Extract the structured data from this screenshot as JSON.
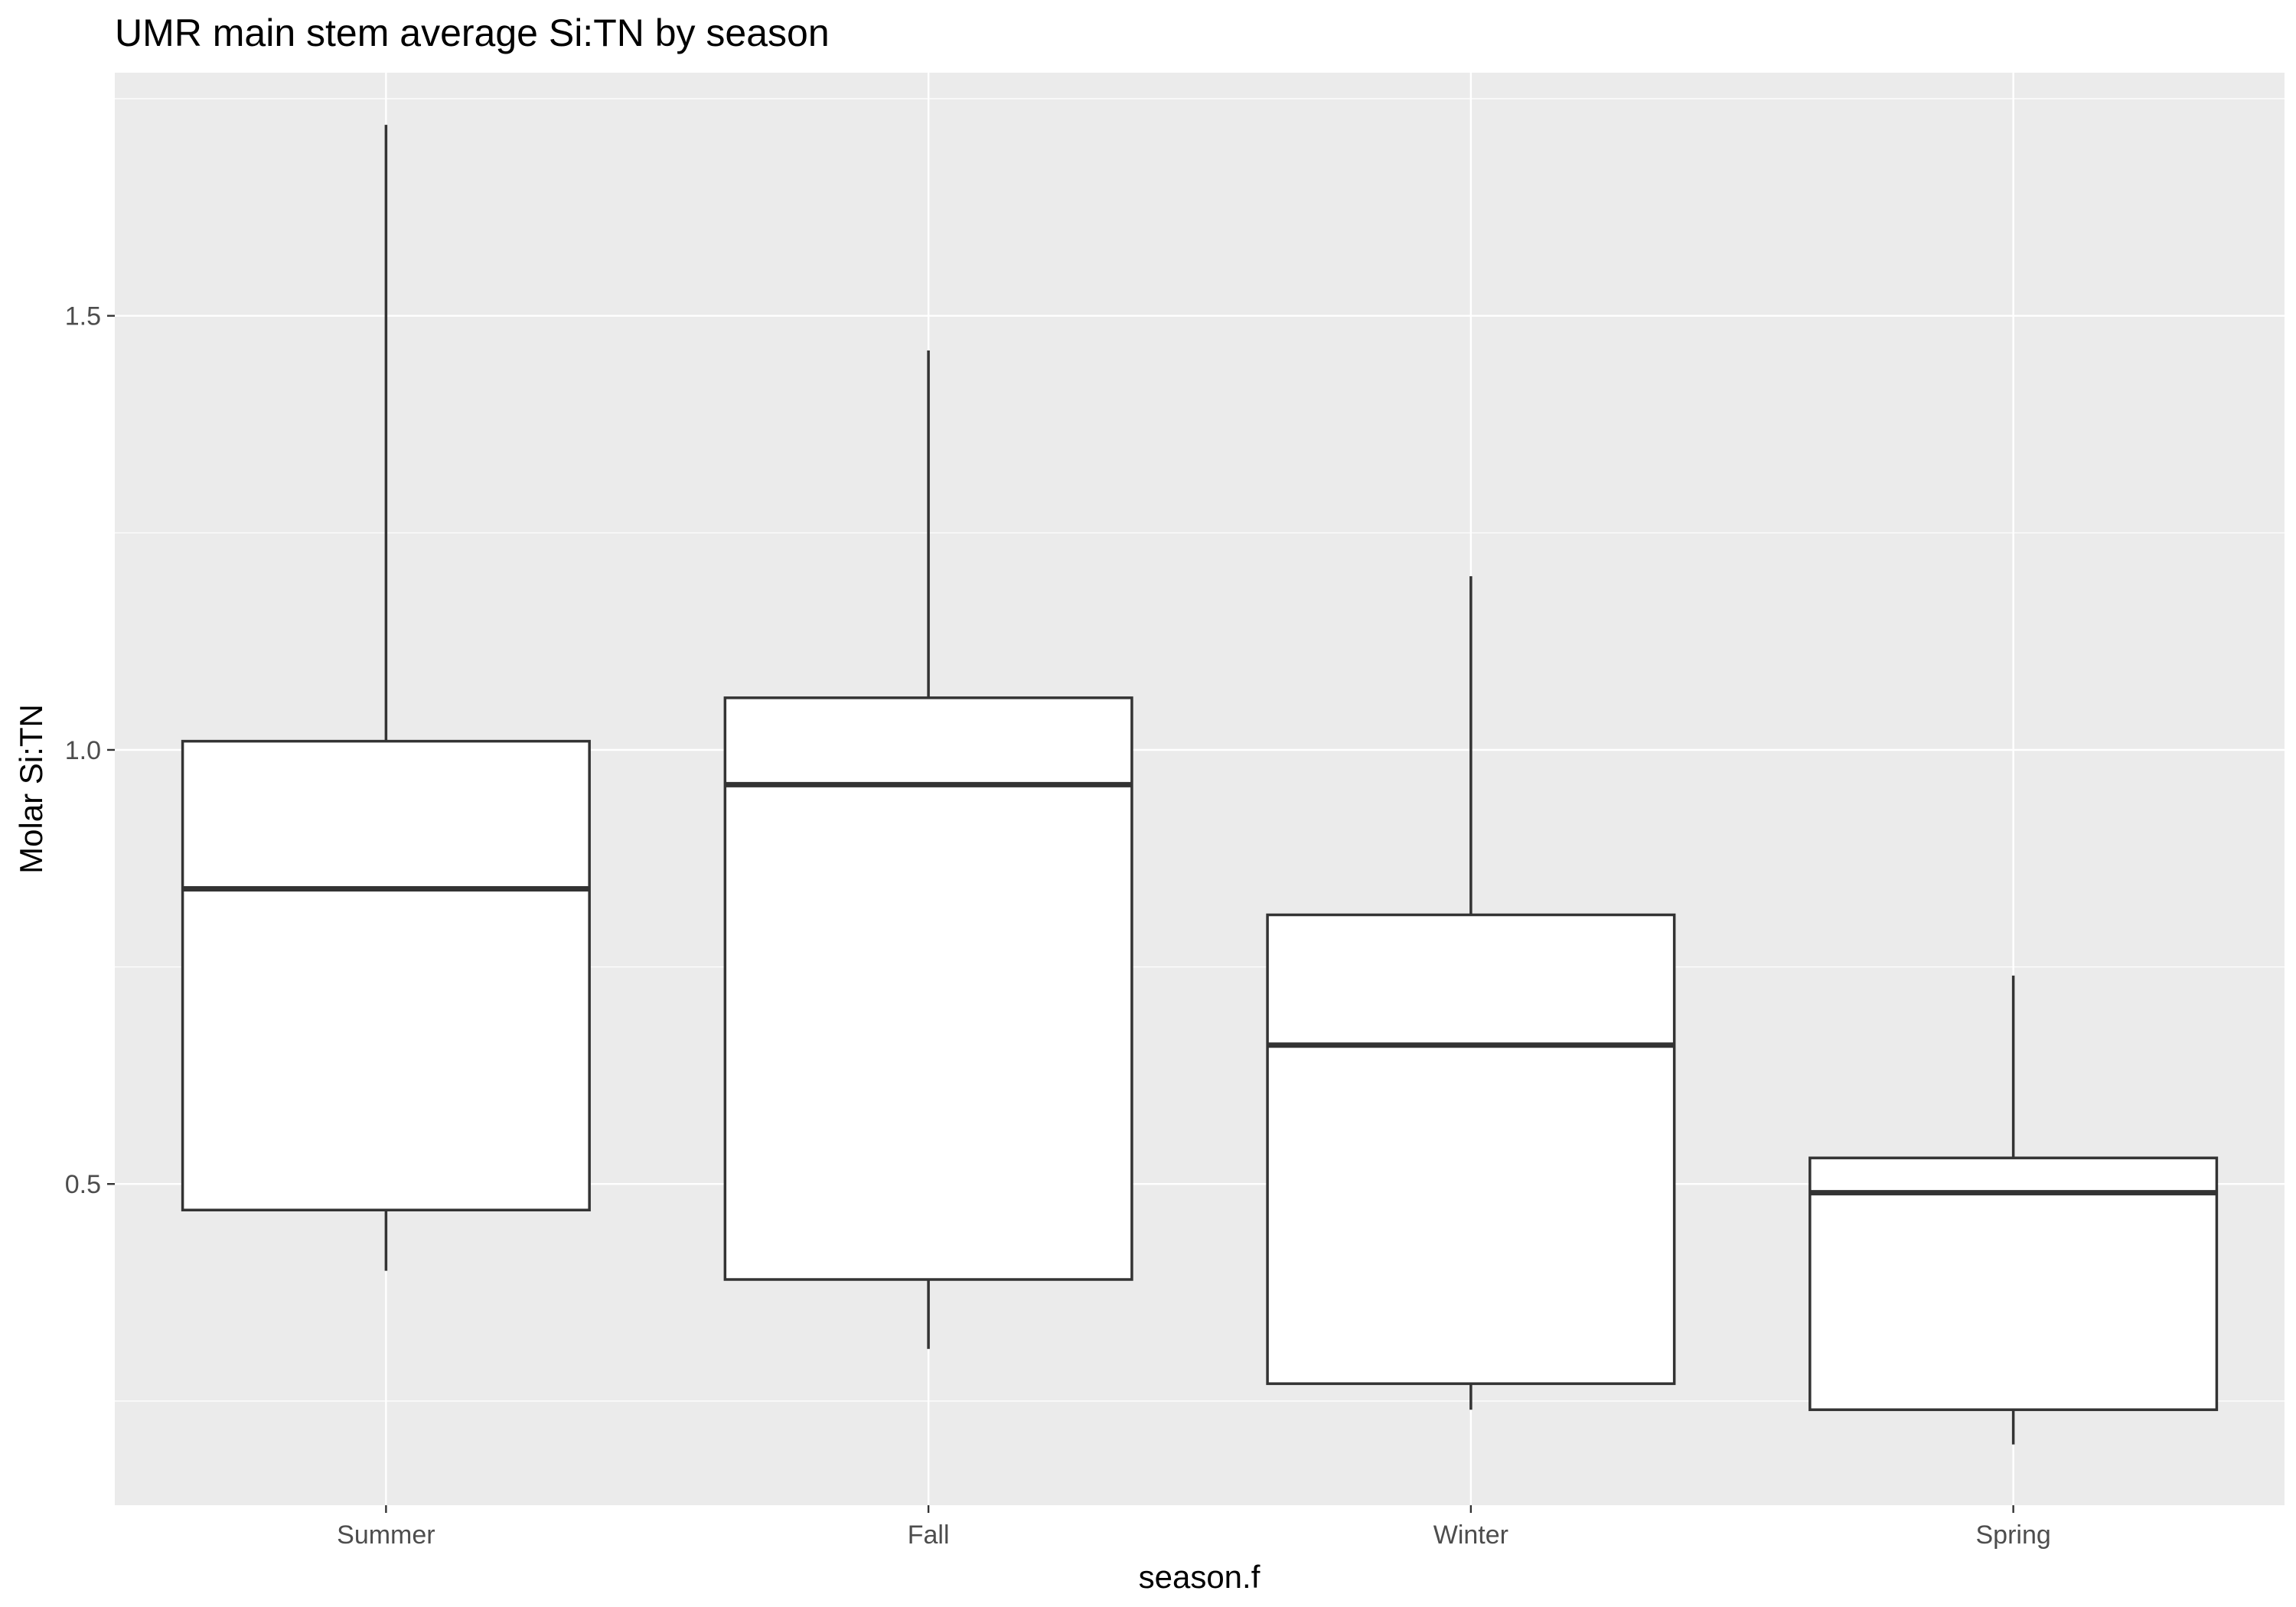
{
  "chart_data": {
    "type": "boxplot",
    "title": "UMR main stem average Si:TN by season",
    "xlabel": "season.f",
    "ylabel": "Molar Si:TN",
    "categories": [
      "Summer",
      "Fall",
      "Winter",
      "Spring"
    ],
    "series": [
      {
        "category": "Summer",
        "min": 0.4,
        "q1": 0.47,
        "median": 0.84,
        "q3": 1.01,
        "max": 1.72
      },
      {
        "category": "Fall",
        "min": 0.31,
        "q1": 0.39,
        "median": 0.96,
        "q3": 1.06,
        "max": 1.46
      },
      {
        "category": "Winter",
        "min": 0.24,
        "q1": 0.27,
        "median": 0.66,
        "q3": 0.81,
        "max": 1.2
      },
      {
        "category": "Spring",
        "min": 0.2,
        "q1": 0.24,
        "median": 0.49,
        "q3": 0.53,
        "max": 0.74
      }
    ],
    "ylim": [
      0.13,
      1.78
    ],
    "yticks": [
      0.5,
      1.0,
      1.5
    ],
    "ytick_labels": [
      "0.5",
      "1.0",
      "1.5"
    ],
    "grid": true,
    "colors": {
      "panel": "#ebebeb",
      "grid": "#ffffff",
      "box_fill": "#ffffff",
      "box_stroke": "#333333",
      "tick_text": "#4d4d4d"
    }
  }
}
